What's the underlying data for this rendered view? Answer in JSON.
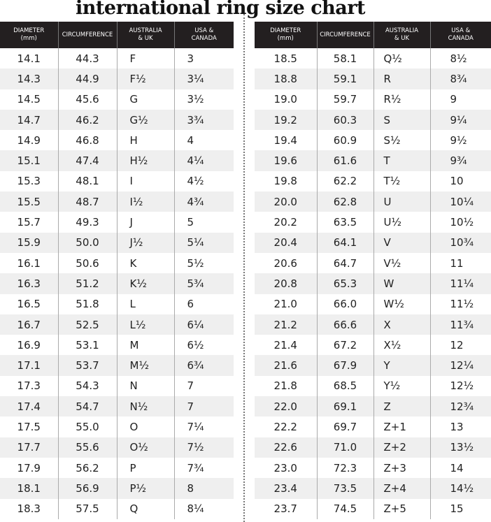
{
  "title": "international ring size chart",
  "headers": [
    [
      "DIAMETER",
      "(mm)"
    ],
    [
      "CIRCUMFERENCE",
      ""
    ],
    [
      "AUSTRALIA",
      "& UK"
    ],
    [
      "USA &",
      "CANADA"
    ]
  ],
  "left_rows": [
    [
      "14.1",
      "44.3",
      "F",
      "3"
    ],
    [
      "14.3",
      "44.9",
      "F½",
      "3¼"
    ],
    [
      "14.5",
      "45.6",
      "G",
      "3½"
    ],
    [
      "14.7",
      "46.2",
      "G½",
      "3¾"
    ],
    [
      "14.9",
      "46.8",
      "H",
      "4"
    ],
    [
      "15.1",
      "47.4",
      "H½",
      "4¼"
    ],
    [
      "15.3",
      "48.1",
      "I",
      "4½"
    ],
    [
      "15.5",
      "48.7",
      "I½",
      "4¾"
    ],
    [
      "15.7",
      "49.3",
      "J",
      "5"
    ],
    [
      "15.9",
      "50.0",
      "J½",
      "5¼"
    ],
    [
      "16.1",
      "50.6",
      "K",
      "5½"
    ],
    [
      "16.3",
      "51.2",
      "K½",
      "5¾"
    ],
    [
      "16.5",
      "51.8",
      "L",
      "6"
    ],
    [
      "16.7",
      "52.5",
      "L½",
      "6¼"
    ],
    [
      "16.9",
      "53.1",
      "M",
      "6½"
    ],
    [
      "17.1",
      "53.7",
      "M½",
      "6¾"
    ],
    [
      "17.3",
      "54.3",
      "N",
      "7"
    ],
    [
      "17.4",
      "54.7",
      "N½",
      "7"
    ],
    [
      "17.5",
      "55.0",
      "O",
      "7¼"
    ],
    [
      "17.7",
      "55.6",
      "O½",
      "7½"
    ],
    [
      "17.9",
      "56.2",
      "P",
      "7¾"
    ],
    [
      "18.1",
      "56.9",
      "P½",
      "8"
    ],
    [
      "18.3",
      "57.5",
      "Q",
      "8¼"
    ]
  ],
  "right_rows": [
    [
      "18.5",
      "58.1",
      "Q½",
      "8½"
    ],
    [
      "18.8",
      "59.1",
      "R",
      "8¾"
    ],
    [
      "19.0",
      "59.7",
      "R½",
      "9"
    ],
    [
      "19.2",
      "60.3",
      "S",
      "9¼"
    ],
    [
      "19.4",
      "60.9",
      "S½",
      "9½"
    ],
    [
      "19.6",
      "61.6",
      "T",
      "9¾"
    ],
    [
      "19.8",
      "62.2",
      "T½",
      "10"
    ],
    [
      "20.0",
      "62.8",
      "U",
      "10¼"
    ],
    [
      "20.2",
      "63.5",
      "U½",
      "10½"
    ],
    [
      "20.4",
      "64.1",
      "V",
      "10¾"
    ],
    [
      "20.6",
      "64.7",
      "V½",
      "11"
    ],
    [
      "20.8",
      "65.3",
      "W",
      "11¼"
    ],
    [
      "21.0",
      "66.0",
      "W½",
      "11½"
    ],
    [
      "21.2",
      "66.6",
      "X",
      "11¾"
    ],
    [
      "21.4",
      "67.2",
      "X½",
      "12"
    ],
    [
      "21.6",
      "67.9",
      "Y",
      "12¼"
    ],
    [
      "21.8",
      "68.5",
      "Y½",
      "12½"
    ],
    [
      "22.0",
      "69.1",
      "Z",
      "12¾"
    ],
    [
      "22.2",
      "69.7",
      "Z+1",
      "13"
    ],
    [
      "22.6",
      "71.0",
      "Z+2",
      "13½"
    ],
    [
      "23.0",
      "72.3",
      "Z+3",
      "14"
    ],
    [
      "23.4",
      "73.5",
      "Z+4",
      "14½"
    ],
    [
      "23.7",
      "74.5",
      "Z+5",
      "15"
    ]
  ]
}
